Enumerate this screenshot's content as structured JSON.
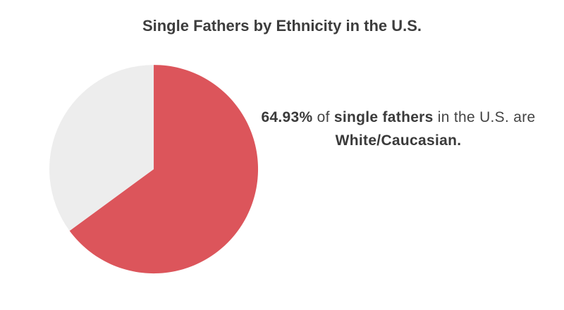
{
  "chart_data": {
    "type": "pie",
    "title": "Single Fathers by Ethnicity in the U.S.",
    "slices": [
      {
        "value": 64.93,
        "color": "#dc555b",
        "exploded": true
      },
      {
        "value": 35.07,
        "color": "#ededed",
        "exploded": false
      }
    ],
    "annotation": {
      "value_text": "64.93%",
      "text_1": " of ",
      "subject_text": "single fathers",
      "text_2": " in the U.S. are ",
      "group_text": "White/Caucasian."
    }
  }
}
